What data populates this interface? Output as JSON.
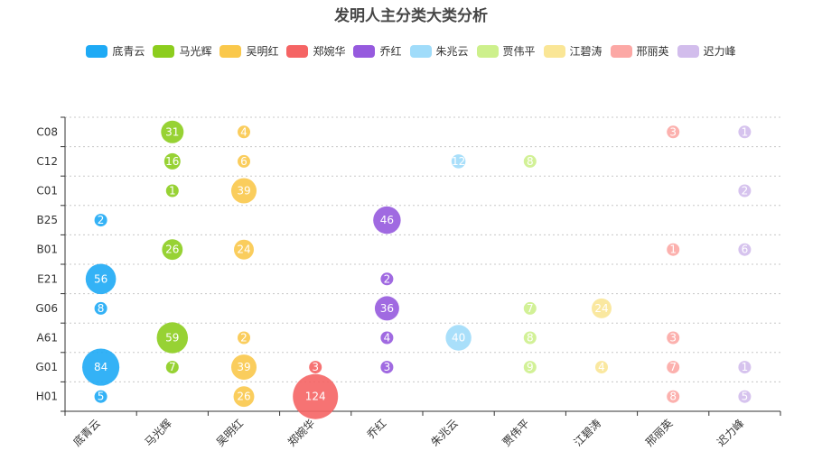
{
  "chart_data": {
    "type": "scatter",
    "title": "发明人主分类大类分析",
    "legend_position": "top-center",
    "grid": "horizontal-dotted",
    "x_categories": [
      "底青云",
      "马光辉",
      "吴明红",
      "郑婉华",
      "乔红",
      "朱兆云",
      "贾伟平",
      "江碧涛",
      "邢丽英",
      "迟力峰"
    ],
    "y_categories": [
      "H01",
      "G01",
      "A61",
      "G06",
      "E21",
      "B01",
      "B25",
      "C01",
      "C12",
      "C08"
    ],
    "series": [
      {
        "name": "底青云",
        "color": "#1eaaf5",
        "points": [
          [
            "H01",
            5
          ],
          [
            "G01",
            84
          ],
          [
            "G06",
            8
          ],
          [
            "E21",
            56
          ],
          [
            "B25",
            2
          ]
        ]
      },
      {
        "name": "马光辉",
        "color": "#8ccd1e",
        "points": [
          [
            "G01",
            7
          ],
          [
            "A61",
            59
          ],
          [
            "B01",
            26
          ],
          [
            "C01",
            1
          ],
          [
            "C12",
            16
          ],
          [
            "C08",
            31
          ]
        ]
      },
      {
        "name": "吴明红",
        "color": "#fac84b",
        "points": [
          [
            "H01",
            26
          ],
          [
            "G01",
            39
          ],
          [
            "A61",
            2
          ],
          [
            "B01",
            24
          ],
          [
            "C01",
            39
          ],
          [
            "C12",
            6
          ],
          [
            "C08",
            4
          ]
        ]
      },
      {
        "name": "郑婉华",
        "color": "#f56464",
        "points": [
          [
            "H01",
            124
          ],
          [
            "G01",
            3
          ]
        ]
      },
      {
        "name": "乔红",
        "color": "#965ade",
        "points": [
          [
            "G01",
            3
          ],
          [
            "A61",
            4
          ],
          [
            "G06",
            36
          ],
          [
            "E21",
            2
          ],
          [
            "B25",
            46
          ]
        ]
      },
      {
        "name": "朱兆云",
        "color": "#a0dcfa",
        "points": [
          [
            "A61",
            40
          ],
          [
            "C12",
            12
          ]
        ]
      },
      {
        "name": "贾伟平",
        "color": "#cdf08c",
        "points": [
          [
            "G01",
            9
          ],
          [
            "A61",
            8
          ],
          [
            "G06",
            7
          ],
          [
            "C12",
            8
          ]
        ]
      },
      {
        "name": "江碧涛",
        "color": "#fae696",
        "points": [
          [
            "G01",
            4
          ],
          [
            "G06",
            24
          ]
        ]
      },
      {
        "name": "邢丽英",
        "color": "#fca8a5",
        "points": [
          [
            "H01",
            8
          ],
          [
            "G01",
            7
          ],
          [
            "A61",
            3
          ],
          [
            "B01",
            1
          ],
          [
            "C08",
            3
          ]
        ]
      },
      {
        "name": "迟力峰",
        "color": "#d2bdec",
        "points": [
          [
            "H01",
            5
          ],
          [
            "G01",
            1
          ],
          [
            "B01",
            6
          ],
          [
            "C01",
            2
          ],
          [
            "C08",
            1
          ]
        ]
      }
    ]
  }
}
